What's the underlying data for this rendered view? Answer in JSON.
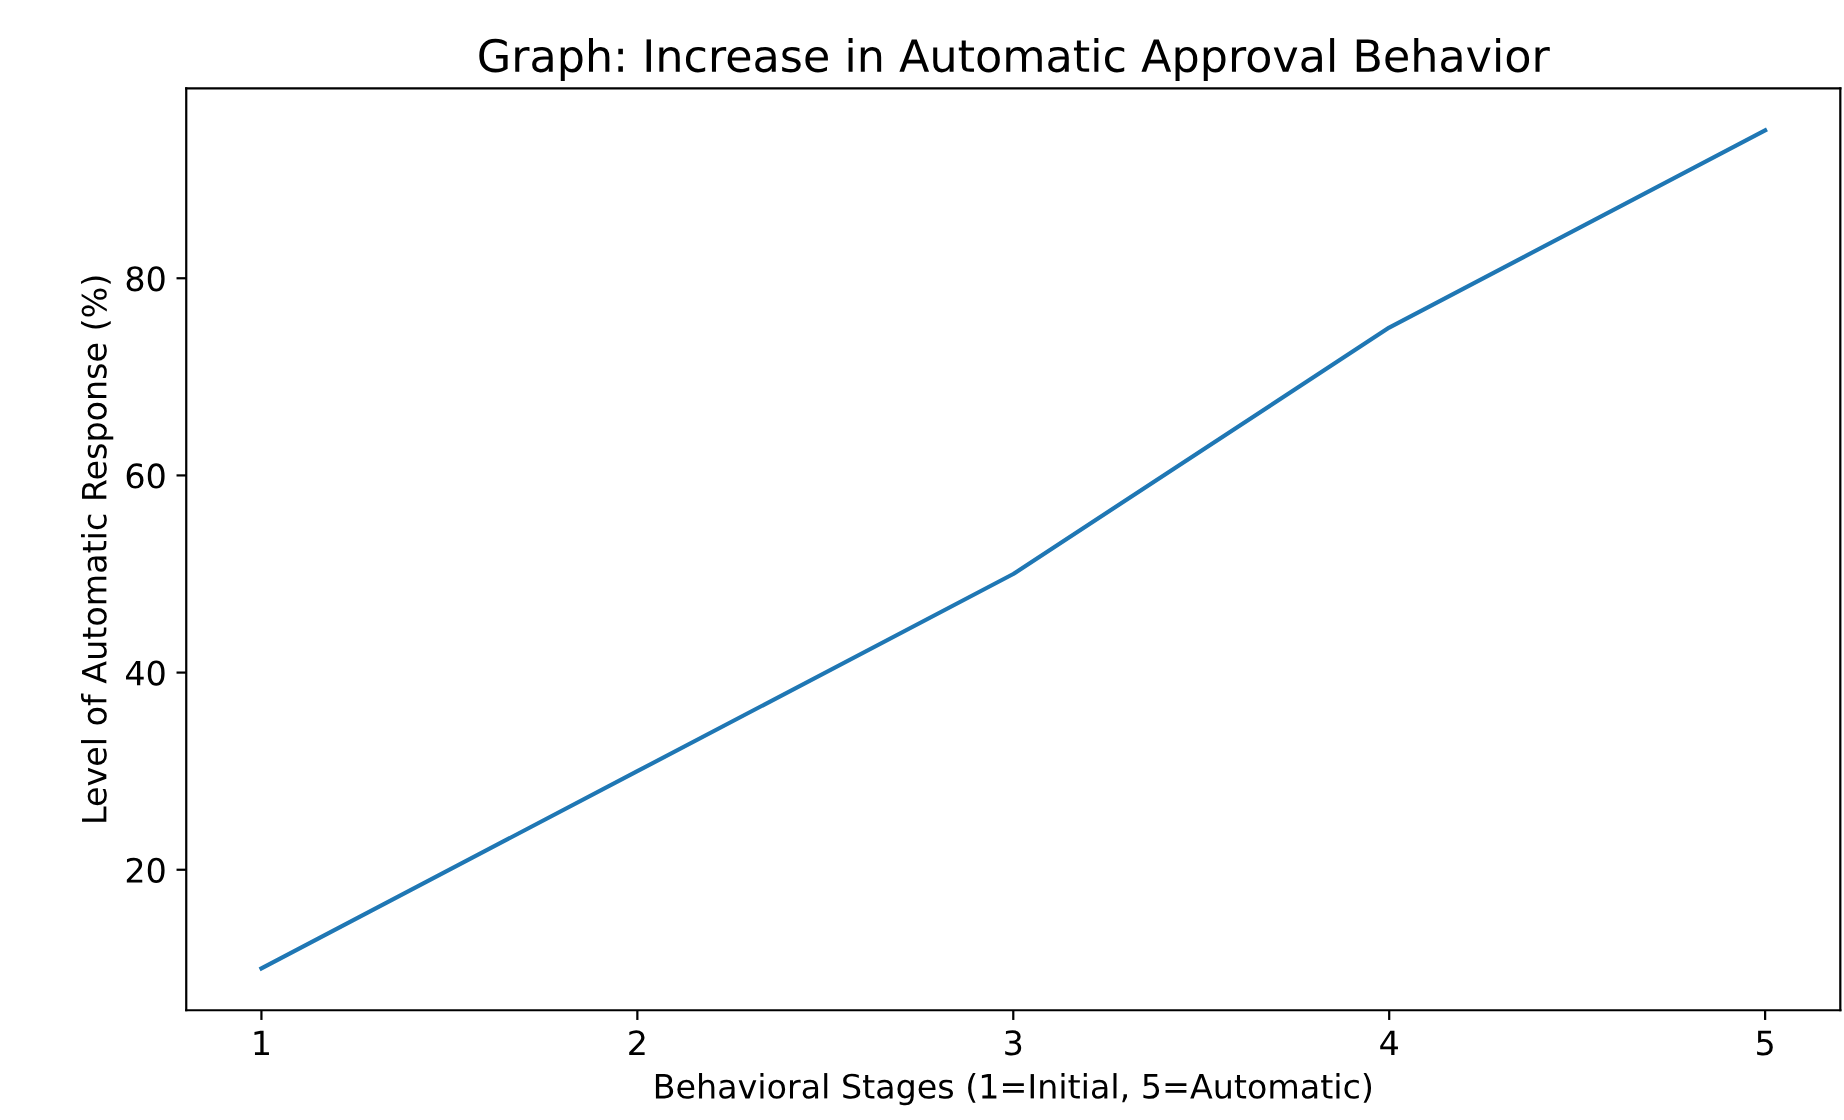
{
  "chart_data": {
    "type": "line",
    "title": "Graph: Increase in Automatic Approval Behavior",
    "xlabel": "Behavioral Stages (1=Initial, 5=Automatic)",
    "ylabel": "Level of Automatic Response (%)",
    "x": [
      1,
      2,
      3,
      4,
      5
    ],
    "series": [
      {
        "color": "#1f77b4",
        "values": [
          10,
          30,
          50,
          75,
          95
        ]
      }
    ],
    "xlim": [
      0.8,
      5.2
    ],
    "xticks": [
      1,
      2,
      3,
      4,
      5
    ],
    "ylim": [
      5.75,
      99.25
    ],
    "yticks": [
      20,
      40,
      60,
      80
    ],
    "grid": false,
    "legend": false,
    "marker": "none",
    "line_style": "solid"
  }
}
